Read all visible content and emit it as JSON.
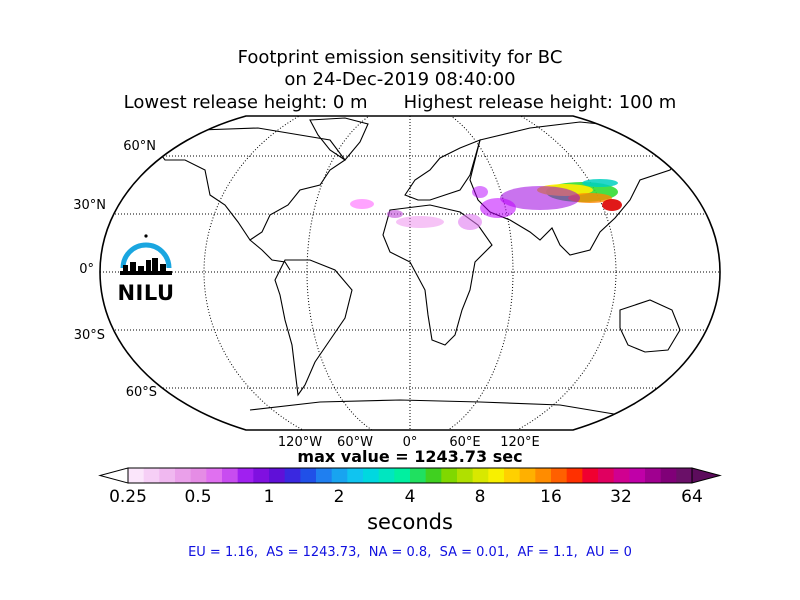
{
  "title": {
    "line1": "Footprint emission sensitivity for BC",
    "line2": "on 24-Dec-2019 08:40:00",
    "lowest": "Lowest release height: 0 m",
    "highest": "Highest release height: 100 m"
  },
  "map": {
    "lat_labels": [
      "60°N",
      "30°N",
      "0°",
      "30°S",
      "60°S"
    ],
    "lon_labels": [
      "120°W",
      "60°W",
      "0°",
      "60°E",
      "120°E"
    ],
    "colors": {
      "land_outline": "#000000",
      "grid": "#000000",
      "background": "#ffffff"
    },
    "logo": {
      "text": "NILU",
      "color": "#1aa6e0"
    }
  },
  "max_value_text": "max value = 1243.73 sec",
  "colorbar": {
    "ticks": [
      "0.25",
      "0.5",
      "1",
      "2",
      "4",
      "8",
      "16",
      "32",
      "64"
    ],
    "label": "seconds",
    "under_color": "#ffffff",
    "over_color": "#5c0c5c"
  },
  "regions_text": "EU = 1.16,  AS = 1243.73,  NA = 0.8,  SA = 0.01,  AF = 1.1,  AU = 0"
}
